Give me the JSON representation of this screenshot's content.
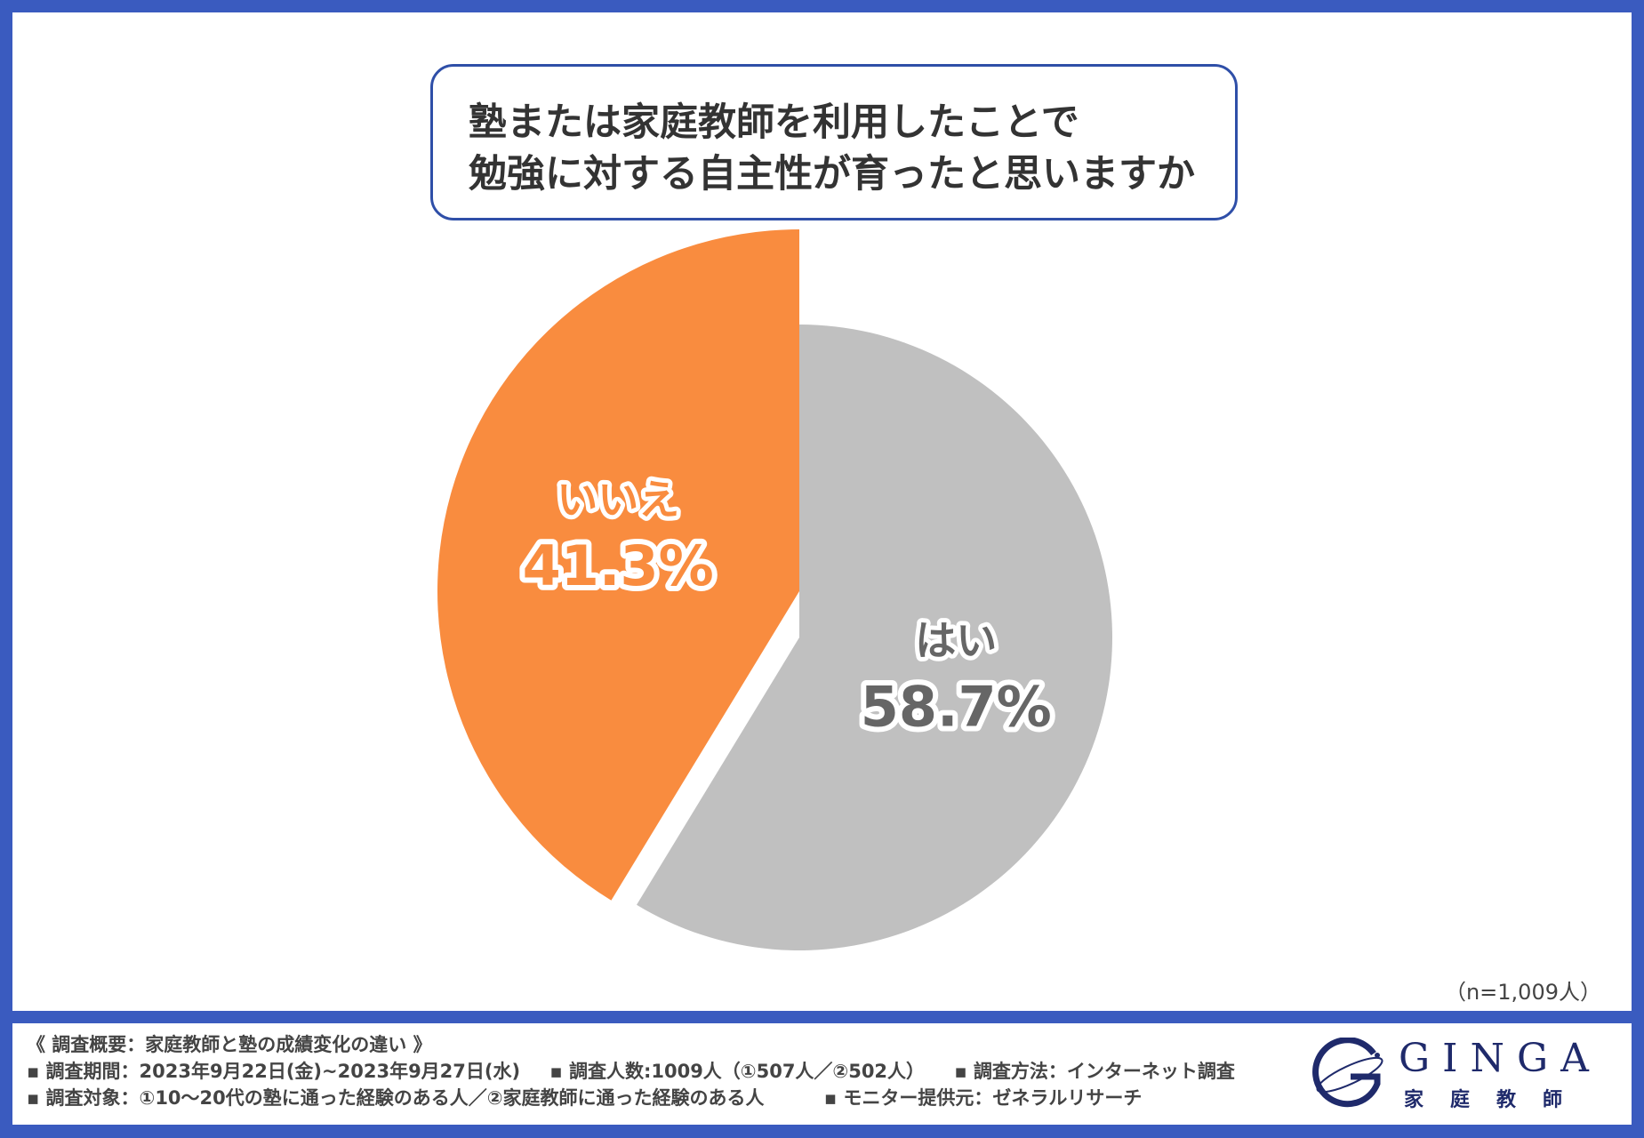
{
  "title": {
    "line1": "塾または家庭教師を利用したことで",
    "line2": "勉強に対する自主性が育ったと思いますか"
  },
  "chart_data": {
    "type": "pie",
    "title": "塾または家庭教師を利用したことで勉強に対する自主性が育ったと思いますか",
    "slices": [
      {
        "label": "はい",
        "value": 58.7,
        "display": "58.7%",
        "color": "#c0c0c0",
        "text_color": "#666666"
      },
      {
        "label": "いいえ",
        "value": 41.3,
        "display": "41.3%",
        "color": "#f98c3f",
        "text_color": "#f98c3f",
        "exploded": true
      }
    ]
  },
  "sample_size": "（n=1,009人）",
  "footer": {
    "heading": "《 調査概要：家庭教師と塾の成績変化の違い 》",
    "period": "▪ 調査期間：2023年9月22日(金)~2023年9月27日(水)",
    "count": "▪ 調査人数:1009人（①507人／②502人）",
    "method": "▪ 調査方法：インターネット調査",
    "target": "▪ 調査対象：①10〜20代の塾に通った経験のある人／②家庭教師に通った経験のある人",
    "provider": "▪ モニター提供元：ゼネラルリサーチ"
  },
  "logo": {
    "word": "GINGA",
    "sub": "家庭教師"
  },
  "colors": {
    "frame": "#3a5bbf",
    "title_border": "#2f4fa8",
    "logo": "#1f2a6b"
  }
}
